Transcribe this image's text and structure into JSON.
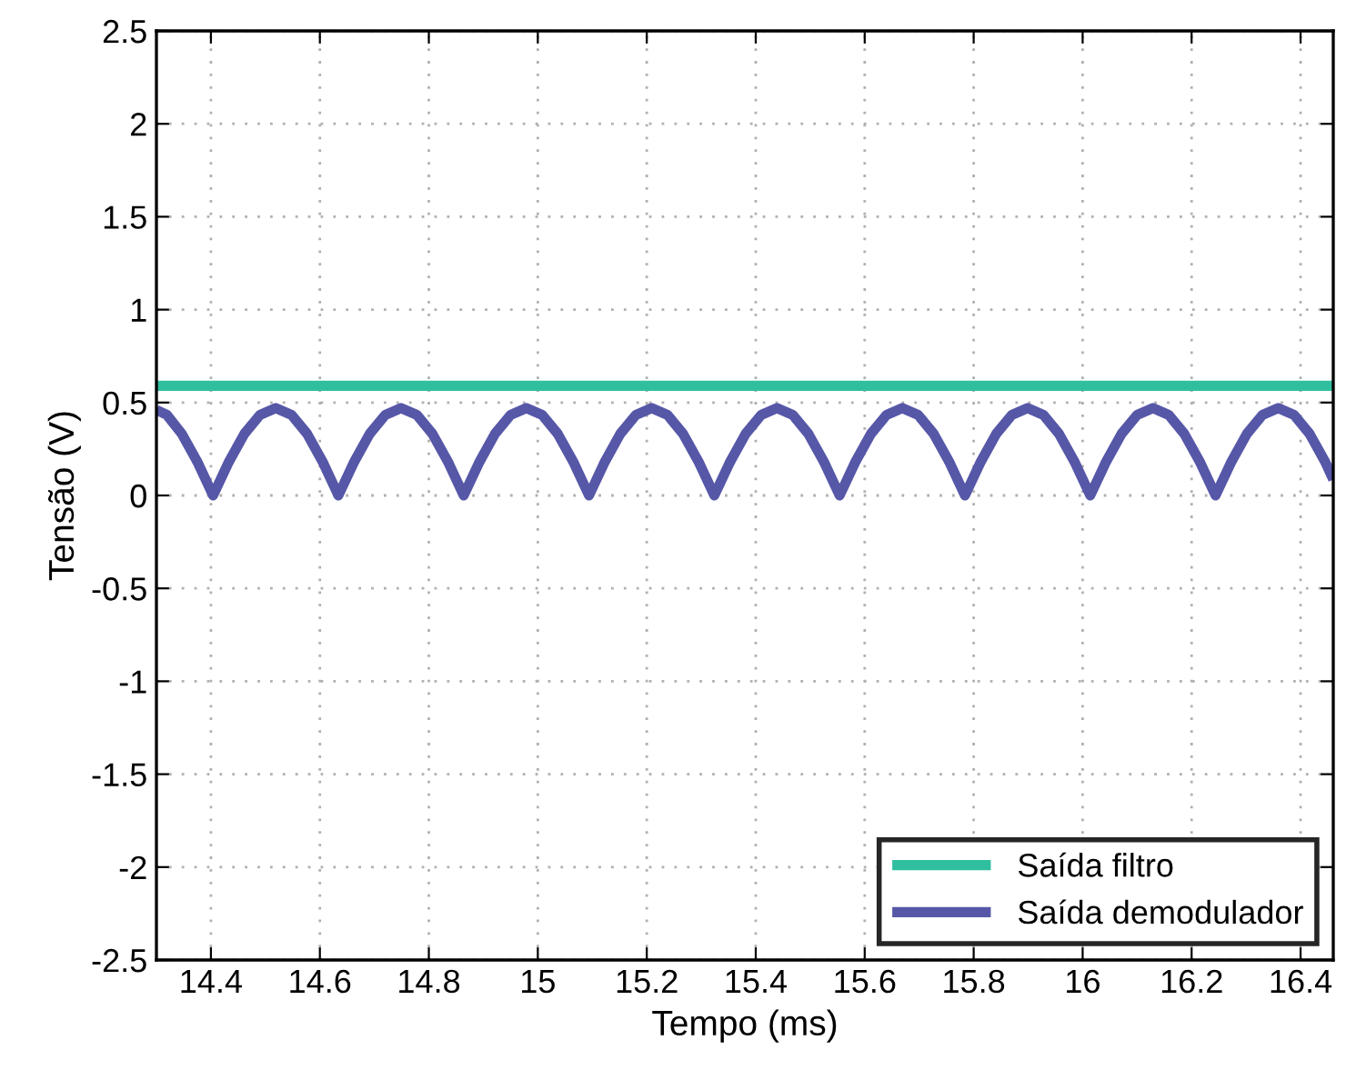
{
  "chart_data": {
    "type": "line",
    "xlabel": "Tempo (ms)",
    "ylabel": "Tensão (V)",
    "xlim": [
      14.3,
      16.46
    ],
    "ylim": [
      -2.5,
      2.5
    ],
    "xticks": [
      14.4,
      14.6,
      14.8,
      15,
      15.2,
      15.4,
      15.6,
      15.8,
      16,
      16.2,
      16.4
    ],
    "yticks": [
      -2.5,
      -2,
      -1.5,
      -1,
      -0.5,
      0,
      0.5,
      1,
      1.5,
      2,
      2.5
    ],
    "grid": true,
    "legend": "bottom right",
    "line_style": "solid",
    "marker": "none",
    "series": [
      {
        "name": "Saída filtro",
        "color": "#2fbf9f",
        "x": [
          14.3,
          16.46
        ],
        "values": [
          0.59,
          0.59
        ]
      },
      {
        "name": "Saída demodulador",
        "color": "#5757a8",
        "x": [
          14.3,
          14.319,
          14.3465,
          14.3753,
          14.404,
          14.4328,
          14.4615,
          14.4903,
          14.519,
          14.5478,
          14.5765,
          14.6053,
          14.634,
          14.6628,
          14.6915,
          14.7203,
          14.749,
          14.7778,
          14.8065,
          14.8353,
          14.864,
          14.8928,
          14.9215,
          14.9503,
          14.979,
          15.0078,
          15.0365,
          15.0653,
          15.094,
          15.1228,
          15.1515,
          15.1803,
          15.209,
          15.2378,
          15.2665,
          15.2953,
          15.324,
          15.3528,
          15.3815,
          15.4103,
          15.439,
          15.4678,
          15.4965,
          15.5253,
          15.554,
          15.5828,
          15.6115,
          15.6403,
          15.669,
          15.6978,
          15.7265,
          15.7553,
          15.784,
          15.8128,
          15.8415,
          15.8703,
          15.899,
          15.9278,
          15.9565,
          15.9853,
          16.014,
          16.0428,
          16.0715,
          16.1003,
          16.129,
          16.1578,
          16.1865,
          16.2153,
          16.244,
          16.2728,
          16.3015,
          16.3303,
          16.359,
          16.3878,
          16.4165,
          16.4453,
          16.46
        ],
        "values": [
          0.46,
          0.434,
          0.332,
          0.18,
          0,
          0.18,
          0.332,
          0.434,
          0.47,
          0.434,
          0.332,
          0.18,
          0,
          0.18,
          0.332,
          0.434,
          0.47,
          0.434,
          0.332,
          0.18,
          0,
          0.18,
          0.332,
          0.434,
          0.47,
          0.434,
          0.332,
          0.18,
          0,
          0.18,
          0.332,
          0.434,
          0.47,
          0.434,
          0.332,
          0.18,
          0,
          0.18,
          0.332,
          0.434,
          0.47,
          0.434,
          0.332,
          0.18,
          0,
          0.18,
          0.332,
          0.434,
          0.47,
          0.434,
          0.332,
          0.18,
          0,
          0.18,
          0.332,
          0.434,
          0.47,
          0.434,
          0.332,
          0.18,
          0,
          0.18,
          0.332,
          0.434,
          0.47,
          0.434,
          0.332,
          0.18,
          0,
          0.18,
          0.332,
          0.434,
          0.47,
          0.434,
          0.332,
          0.18,
          0.086
        ]
      }
    ]
  }
}
